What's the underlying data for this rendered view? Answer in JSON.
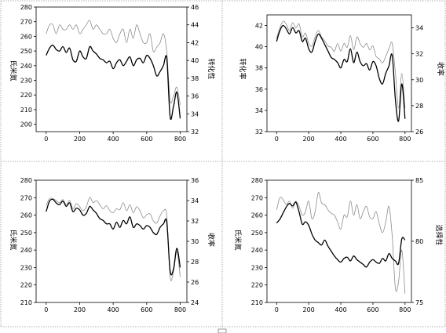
{
  "colors": {
    "thick_series": "#000000",
    "thin_series": "#8c8c8c",
    "separator": "#9a9a9a"
  },
  "chart_data": [
    {
      "type": "line",
      "title": "",
      "xlabel": "",
      "ylabel": "氏米氮",
      "y2label": "转化性",
      "xlim": [
        -60,
        840
      ],
      "xticks": [
        0,
        200,
        400,
        600,
        800
      ],
      "ylim": [
        195,
        280
      ],
      "yticks": [
        200,
        210,
        220,
        230,
        240,
        250,
        260,
        270,
        280
      ],
      "y2lim": [
        32,
        46
      ],
      "y2ticks": [
        32,
        34,
        36,
        38,
        40,
        42,
        44,
        46
      ],
      "grid": false,
      "series": [
        {
          "axis": "left",
          "style": "thick",
          "x": [
            0,
            20,
            40,
            60,
            80,
            100,
            120,
            140,
            160,
            180,
            200,
            220,
            240,
            260,
            280,
            300,
            320,
            340,
            360,
            380,
            400,
            420,
            440,
            460,
            480,
            500,
            520,
            540,
            560,
            580,
            600,
            620,
            640,
            660,
            680,
            700,
            720,
            740,
            760,
            780,
            800
          ],
          "values": [
            247,
            252,
            254,
            251,
            250,
            253,
            249,
            252,
            244,
            243,
            250,
            246,
            245,
            253,
            250,
            248,
            245,
            244,
            242,
            243,
            238,
            242,
            244,
            240,
            243,
            246,
            240,
            244,
            245,
            242,
            247,
            245,
            240,
            233,
            236,
            240,
            245,
            205,
            212,
            222,
            204
          ]
        },
        {
          "axis": "right",
          "style": "thin",
          "x": [
            0,
            20,
            40,
            60,
            80,
            100,
            120,
            140,
            160,
            180,
            200,
            220,
            240,
            260,
            280,
            300,
            320,
            340,
            360,
            380,
            400,
            420,
            440,
            460,
            480,
            500,
            520,
            540,
            560,
            580,
            600,
            620,
            640,
            660,
            680,
            700,
            720,
            740,
            760,
            780,
            800
          ],
          "values": [
            43,
            44,
            44,
            43,
            44,
            43.5,
            43.5,
            44,
            43.5,
            44,
            43,
            43.5,
            44,
            44.5,
            43.5,
            44,
            43.5,
            43,
            43,
            43.5,
            42.5,
            42,
            43,
            43.5,
            42,
            43.5,
            42.5,
            44,
            43,
            42,
            42,
            43,
            41,
            41.5,
            42,
            43,
            41,
            35.5,
            36,
            37,
            35
          ]
        }
      ]
    },
    {
      "type": "line",
      "title": "",
      "xlabel": "",
      "ylabel": "转化率",
      "y2label": "收率",
      "xlim": [
        -60,
        840
      ],
      "xticks": [
        0,
        200,
        400,
        600,
        800
      ],
      "ylim": [
        32,
        43
      ],
      "yticks": [
        32,
        34,
        36,
        38,
        40,
        42
      ],
      "y2lim": [
        26,
        35
      ],
      "y2ticks": [
        26,
        28,
        30,
        32,
        34
      ],
      "grid": false,
      "series": [
        {
          "axis": "left",
          "style": "thick",
          "x": [
            0,
            20,
            40,
            60,
            80,
            100,
            120,
            140,
            160,
            180,
            200,
            220,
            240,
            260,
            280,
            300,
            320,
            340,
            360,
            380,
            400,
            420,
            440,
            460,
            480,
            500,
            520,
            540,
            560,
            580,
            600,
            620,
            640,
            660,
            680,
            700,
            720,
            740,
            760,
            780,
            800
          ],
          "values": [
            40.5,
            41.5,
            42,
            41.7,
            41.2,
            41.8,
            41.3,
            41.5,
            40.5,
            40.8,
            39.8,
            39.5,
            40.5,
            41.2,
            40.8,
            40.2,
            39.6,
            39,
            38.8,
            38.5,
            38,
            38.8,
            38.6,
            39.8,
            38.5,
            39.5,
            38.6,
            38.2,
            38.4,
            37.8,
            38.6,
            38.2,
            37,
            36.5,
            37.5,
            38.2,
            39.2,
            35,
            33,
            36.5,
            33.2
          ]
        },
        {
          "axis": "right",
          "style": "thin",
          "x": [
            0,
            20,
            40,
            60,
            80,
            100,
            120,
            140,
            160,
            180,
            200,
            220,
            240,
            260,
            280,
            300,
            320,
            340,
            360,
            380,
            400,
            420,
            440,
            460,
            480,
            500,
            520,
            540,
            560,
            580,
            600,
            620,
            640,
            660,
            680,
            700,
            720,
            740,
            760,
            780,
            800
          ],
          "values": [
            33.2,
            34,
            34.5,
            34.3,
            33.8,
            34.4,
            34,
            34.3,
            33.3,
            33.6,
            32.8,
            32.6,
            33.3,
            33.8,
            33.3,
            33,
            32.6,
            32.5,
            32.2,
            32.8,
            32.2,
            32.8,
            32.5,
            33.4,
            32.3,
            33.3,
            32.8,
            32.5,
            32.8,
            32.3,
            32.6,
            31.8,
            31.6,
            31.3,
            31.8,
            32.4,
            32.8,
            30.5,
            27.8,
            30.5,
            27.8
          ]
        }
      ]
    },
    {
      "type": "line",
      "title": "",
      "xlabel": "",
      "ylabel": "氏米氮",
      "y2label": "收率",
      "xlim": [
        -60,
        840
      ],
      "xticks": [
        0,
        200,
        400,
        600,
        800
      ],
      "ylim": [
        210,
        280
      ],
      "yticks": [
        210,
        220,
        230,
        240,
        250,
        260,
        270,
        280
      ],
      "y2lim": [
        24,
        36
      ],
      "y2ticks": [
        24,
        26,
        28,
        30,
        32,
        34,
        36
      ],
      "grid": false,
      "series": [
        {
          "axis": "left",
          "style": "thick",
          "x": [
            0,
            20,
            40,
            60,
            80,
            100,
            120,
            140,
            160,
            180,
            200,
            220,
            240,
            260,
            280,
            300,
            320,
            340,
            360,
            380,
            400,
            420,
            440,
            460,
            480,
            500,
            520,
            540,
            560,
            580,
            600,
            620,
            640,
            660,
            680,
            700,
            720,
            740,
            760,
            780,
            800
          ],
          "values": [
            262,
            268,
            269,
            267,
            266,
            268,
            265,
            267,
            262,
            264,
            263,
            260,
            261,
            265,
            263,
            261,
            258,
            257,
            255,
            255,
            252,
            256,
            253,
            257,
            255,
            259,
            253,
            255,
            254,
            252,
            254,
            253,
            250,
            249,
            253,
            255,
            256,
            228,
            229,
            241,
            230
          ]
        },
        {
          "axis": "right",
          "style": "thin",
          "x": [
            0,
            20,
            40,
            60,
            80,
            100,
            120,
            140,
            160,
            180,
            200,
            220,
            240,
            260,
            280,
            300,
            320,
            340,
            360,
            380,
            400,
            420,
            440,
            460,
            480,
            500,
            520,
            540,
            560,
            580,
            600,
            620,
            640,
            660,
            680,
            700,
            720,
            740,
            760,
            780,
            800
          ],
          "values": [
            33.5,
            34.2,
            34.2,
            34,
            33.8,
            34.1,
            33.6,
            34,
            33.2,
            33.7,
            33.4,
            33,
            33.4,
            34.3,
            33.8,
            34,
            33.6,
            33.2,
            33.5,
            33,
            32.8,
            33.2,
            33.1,
            33.8,
            33,
            33.6,
            32.8,
            33.4,
            33,
            32.3,
            32.6,
            32.7,
            32,
            31.8,
            32.5,
            33,
            32.5,
            26.5,
            27,
            29,
            26.5
          ]
        }
      ]
    },
    {
      "type": "line",
      "title": "",
      "xlabel": "",
      "ylabel": "氏米氮",
      "y2label": "选择性",
      "xlim": [
        -60,
        840
      ],
      "xticks": [
        0,
        200,
        400,
        600,
        800
      ],
      "ylim": [
        210,
        280
      ],
      "yticks": [
        210,
        220,
        230,
        240,
        250,
        260,
        270,
        280
      ],
      "y2lim": [
        75,
        85
      ],
      "y2ticks": [
        75,
        80,
        85
      ],
      "grid": false,
      "series": [
        {
          "axis": "left",
          "style": "thin",
          "x": [
            0,
            20,
            40,
            60,
            80,
            100,
            120,
            140,
            160,
            180,
            200,
            220,
            240,
            260,
            280,
            300,
            320,
            340,
            360,
            380,
            400,
            420,
            440,
            460,
            480,
            500,
            520,
            540,
            560,
            580,
            600,
            620,
            640,
            660,
            680,
            700,
            720,
            740,
            760,
            780,
            800
          ],
          "values": [
            263,
            270,
            269,
            266,
            268,
            264,
            268,
            265,
            260,
            262,
            268,
            258,
            262,
            273,
            267,
            266,
            263,
            261,
            260,
            256,
            252,
            260,
            259,
            268,
            260,
            266,
            258,
            262,
            265,
            259,
            258,
            262,
            255,
            250,
            256,
            265,
            248,
            218,
            222,
            240,
            215
          ]
        },
        {
          "axis": "right",
          "style": "thick",
          "x": [
            0,
            20,
            40,
            60,
            80,
            100,
            120,
            140,
            160,
            180,
            200,
            220,
            240,
            260,
            280,
            300,
            320,
            340,
            360,
            380,
            400,
            420,
            440,
            460,
            480,
            500,
            520,
            540,
            560,
            580,
            600,
            620,
            640,
            660,
            680,
            700,
            720,
            740,
            760,
            780,
            800
          ],
          "values": [
            81.5,
            81.8,
            82.3,
            82.8,
            83.1,
            82.9,
            83.2,
            82.4,
            81.4,
            81.6,
            81.3,
            80.6,
            80.1,
            79.9,
            79.7,
            80.1,
            79.6,
            79.2,
            78.8,
            78.5,
            78.3,
            78.6,
            78.7,
            78.4,
            78.8,
            78.5,
            78.3,
            78.1,
            77.9,
            78.3,
            78.5,
            78.3,
            78.2,
            78.6,
            78.4,
            79,
            78.6,
            78.4,
            78.2,
            80.2,
            80.1
          ]
        }
      ]
    }
  ]
}
